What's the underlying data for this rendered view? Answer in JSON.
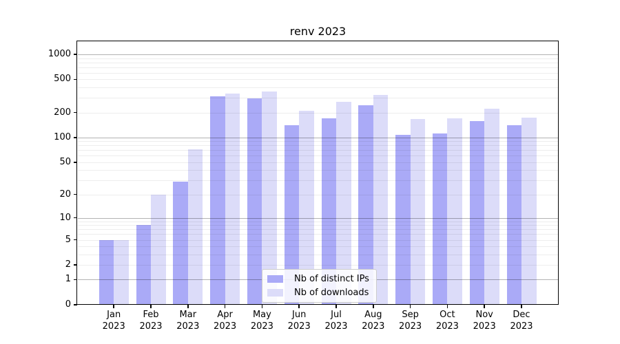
{
  "page": {
    "title": "renv 2023"
  },
  "chart_data": {
    "type": "bar",
    "title": "renv 2023",
    "categories": [
      "Jan",
      "Feb",
      "Mar",
      "Apr",
      "May",
      "Jun",
      "Jul",
      "Aug",
      "Sep",
      "Oct",
      "Nov",
      "Dec"
    ],
    "x_year_suffix": "2023",
    "series": [
      {
        "name": "Nb of distinct IPs",
        "color": "#aaaaf7",
        "values": [
          5,
          8,
          29,
          313,
          295,
          140,
          170,
          244,
          107,
          111,
          158,
          142
        ]
      },
      {
        "name": "Nb of downloads",
        "color": "#dcdcf9",
        "values": [
          5,
          20,
          72,
          338,
          360,
          212,
          270,
          325,
          167,
          170,
          222,
          172
        ]
      }
    ],
    "xlabel": "",
    "ylabel": "",
    "yscale": "log1p",
    "ylim": [
      0,
      1420
    ],
    "yticks": [
      0,
      1,
      2,
      5,
      10,
      20,
      50,
      100,
      200,
      500,
      1000
    ],
    "grid": "both",
    "grid_major_values": [
      1,
      10,
      100,
      1000
    ],
    "legend_position": "lower center",
    "colors": {
      "major_grid": "#b3b3b3",
      "minor_grid": "#ebebeb",
      "spine": "#000000",
      "background": "#ffffff"
    }
  }
}
